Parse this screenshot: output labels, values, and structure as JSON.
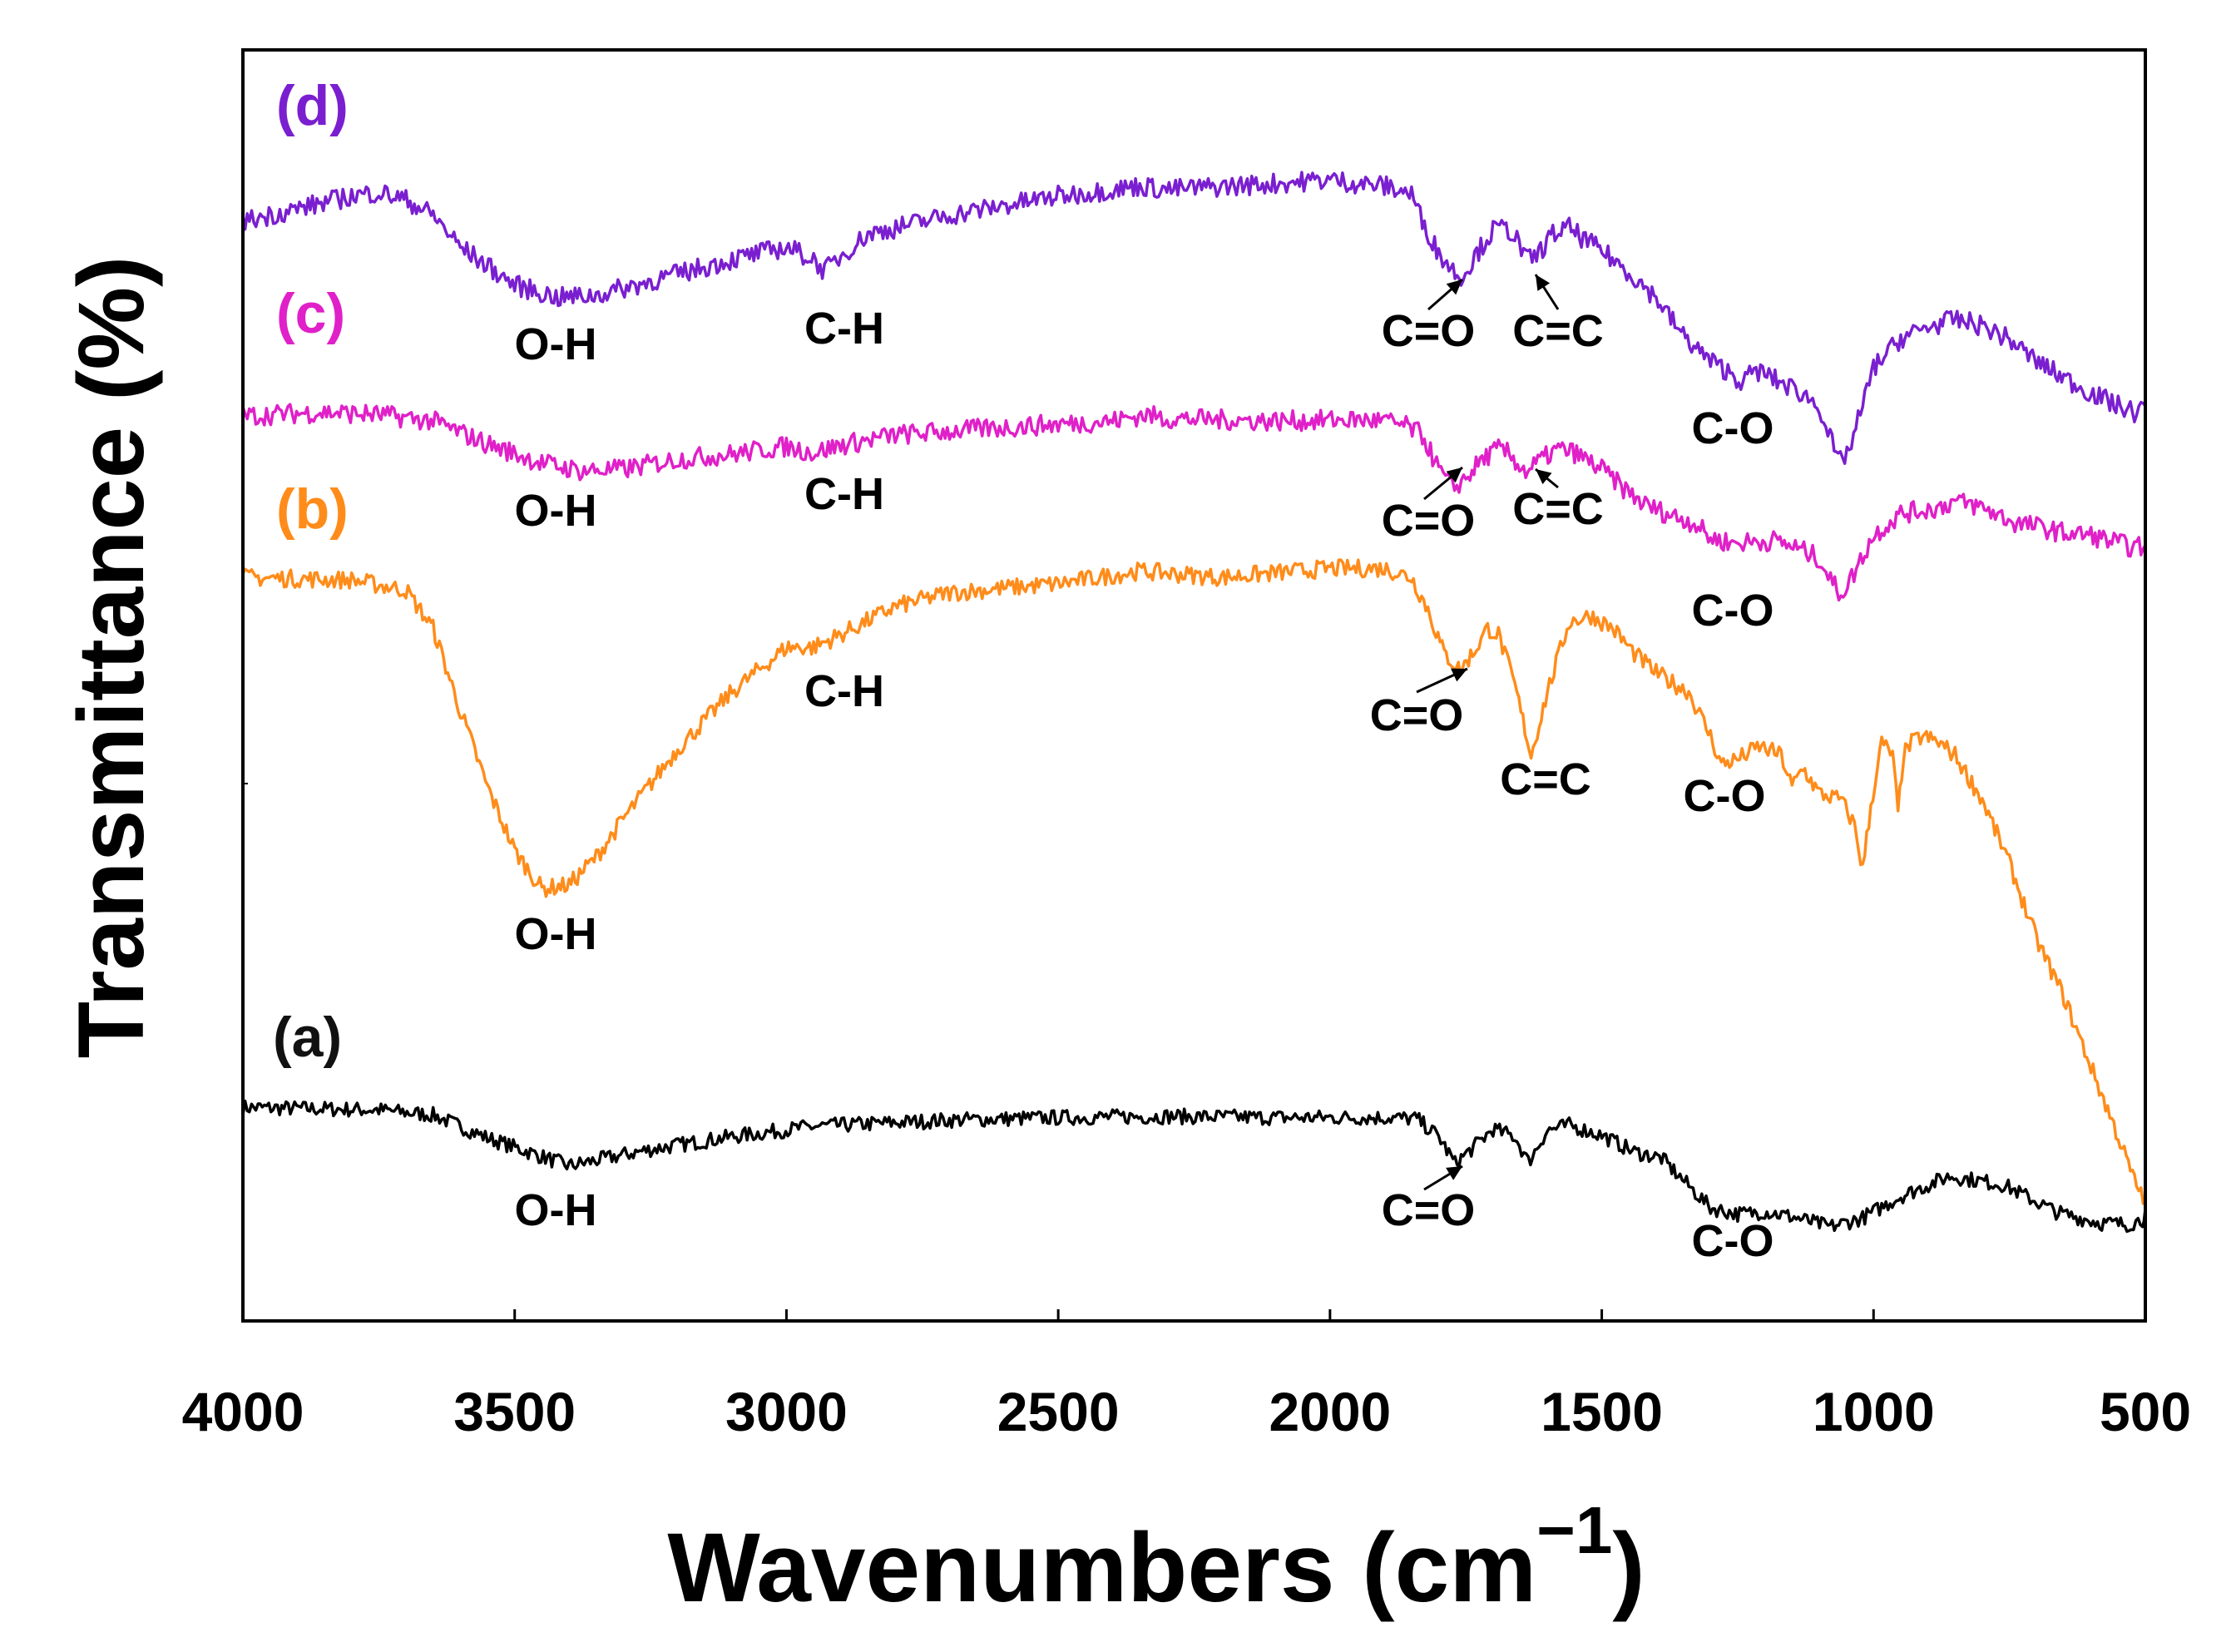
{
  "chart_data": {
    "type": "line",
    "title": "",
    "xlabel": "Wavenumbers (cm",
    "xlabel_superscript": "−1",
    "xlabel_close": ")",
    "ylabel": "Transmittance (%)",
    "xlim": [
      4000,
      500
    ],
    "x_reversed": true,
    "yticks_shown": false,
    "xticks": [
      "4000",
      "3500",
      "3000",
      "2500",
      "2000",
      "1500",
      "1000",
      "500"
    ],
    "xtick_values": [
      4000,
      3500,
      3000,
      2500,
      2000,
      1500,
      1000,
      500
    ],
    "ylim": [
      0,
      100
    ],
    "series": [
      {
        "name": "(a)",
        "color": "#000000",
        "noise": 1.2,
        "x": [
          4000,
          3750,
          3650,
          3550,
          3400,
          3250,
          3100,
          2950,
          2700,
          2500,
          2300,
          2100,
          1900,
          1840,
          1800,
          1770,
          1740,
          1700,
          1660,
          1635,
          1600,
          1560,
          1500,
          1440,
          1390,
          1360,
          1300,
          1250,
          1200,
          1150,
          1080,
          1020,
          950,
          860,
          760,
          660,
          580,
          530,
          505,
          500
        ],
        "y": [
          16.8,
          16.6,
          16.2,
          14.4,
          12.2,
          13.5,
          14.5,
          15.3,
          15.8,
          16.0,
          16.1,
          16.0,
          16.0,
          15.9,
          14.5,
          12.4,
          13.5,
          15.1,
          14.5,
          12.5,
          15.0,
          15.4,
          14.6,
          13.3,
          12.8,
          11.5,
          8.9,
          8.4,
          8.6,
          8.2,
          7.4,
          8.1,
          9.8,
          11.4,
          10.7,
          8.5,
          7.7,
          7.6,
          8.0,
          8.8
        ]
      },
      {
        "name": "(b)",
        "color": "#FF8C1A",
        "noise": 1.4,
        "x": [
          4000,
          3800,
          3700,
          3650,
          3600,
          3550,
          3500,
          3450,
          3400,
          3350,
          3300,
          3200,
          3100,
          3000,
          2950,
          2900,
          2800,
          2700,
          2500,
          2350,
          2200,
          2000,
          1900,
          1850,
          1820,
          1790,
          1760,
          1730,
          1710,
          1690,
          1660,
          1630,
          1600,
          1560,
          1520,
          1480,
          1440,
          1400,
          1370,
          1340,
          1300,
          1280,
          1250,
          1210,
          1170,
          1150,
          1130,
          1100,
          1060,
          1035,
          1020,
          1005,
          985,
          965,
          955,
          945,
          930,
          910,
          880,
          850,
          800,
          750,
          700,
          650,
          600,
          550,
          520,
          500
        ],
        "y": [
          58.5,
          58.3,
          57.5,
          54.5,
          48.0,
          42.0,
          37.0,
          34.0,
          34.3,
          36.5,
          39.5,
          45.0,
          49.5,
          53.0,
          53.0,
          54.0,
          56.2,
          57.3,
          58.0,
          59.0,
          58.5,
          59.2,
          59.2,
          58.5,
          56.0,
          52.5,
          51.2,
          53.0,
          54.5,
          54.0,
          50.0,
          44.5,
          49.5,
          55.0,
          55.5,
          54.5,
          52.5,
          51.0,
          50.2,
          49.5,
          46.0,
          43.8,
          44.2,
          45.2,
          44.5,
          42.0,
          43.5,
          41.5,
          41.0,
          39.0,
          35.5,
          40.5,
          45.5,
          44.5,
          40.0,
          44.5,
          45.5,
          46.0,
          45.5,
          44.5,
          41.0,
          36.0,
          30.0,
          25.5,
          20.0,
          14.5,
          11.0,
          9.5
        ]
      },
      {
        "name": "(c)",
        "color": "#E020C8",
        "noise": 1.6,
        "x": [
          4000,
          3850,
          3750,
          3650,
          3550,
          3450,
          3380,
          3300,
          3200,
          3100,
          3000,
          2950,
          2900,
          2800,
          2600,
          2400,
          2340,
          2300,
          2100,
          1950,
          1900,
          1860,
          1830,
          1800,
          1775,
          1750,
          1720,
          1690,
          1670,
          1640,
          1610,
          1580,
          1550,
          1500,
          1460,
          1420,
          1380,
          1330,
          1300,
          1260,
          1220,
          1180,
          1140,
          1100,
          1075,
          1060,
          1040,
          1000,
          950,
          880,
          850,
          800,
          740,
          700,
          650,
          600,
          550,
          520,
          500
        ],
        "y": [
          71.2,
          71.5,
          71.3,
          70.8,
          69.0,
          67.5,
          66.9,
          67.0,
          67.8,
          68.2,
          68.8,
          68.3,
          68.9,
          69.7,
          70.3,
          70.8,
          71.3,
          71.0,
          70.8,
          70.9,
          70.8,
          70.4,
          69.7,
          67.0,
          65.5,
          66.3,
          67.8,
          68.6,
          68.2,
          66.8,
          67.8,
          68.6,
          68.3,
          67.0,
          65.5,
          64.2,
          63.5,
          62.8,
          61.6,
          61.2,
          61.3,
          61.4,
          60.8,
          60.0,
          58.0,
          57.2,
          58.5,
          61.8,
          63.5,
          64.0,
          64.5,
          64.0,
          62.8,
          62.5,
          62.0,
          61.8,
          61.2,
          60.8,
          61.0
        ]
      },
      {
        "name": "(d)",
        "color": "#7A1FD0",
        "noise": 1.6,
        "x": [
          4000,
          3900,
          3800,
          3750,
          3700,
          3650,
          3600,
          3500,
          3420,
          3350,
          3250,
          3100,
          3000,
          2950,
          2930,
          2900,
          2850,
          2700,
          2500,
          2400,
          2350,
          2300,
          2100,
          2000,
          1950,
          1900,
          1850,
          1830,
          1800,
          1770,
          1755,
          1730,
          1700,
          1680,
          1660,
          1640,
          1620,
          1590,
          1560,
          1530,
          1500,
          1450,
          1400,
          1350,
          1300,
          1260,
          1240,
          1220,
          1200,
          1170,
          1140,
          1100,
          1080,
          1065,
          1045,
          1020,
          1000,
          950,
          900,
          850,
          800,
          750,
          700,
          650,
          600,
          550,
          520,
          500
        ],
        "y": [
          86.5,
          87.5,
          88.5,
          88.8,
          88.2,
          87.0,
          84.5,
          81.5,
          80.5,
          80.7,
          81.8,
          83.5,
          84.5,
          83.5,
          82.6,
          83.8,
          85.5,
          87.0,
          88.5,
          89.0,
          89.3,
          89.0,
          89.5,
          89.8,
          89.5,
          89.3,
          88.7,
          86.5,
          84.0,
          82.5,
          82.2,
          84.0,
          85.8,
          86.0,
          85.5,
          83.5,
          83.8,
          85.5,
          86.0,
          85.0,
          84.2,
          82.5,
          80.5,
          77.5,
          75.5,
          74.5,
          73.8,
          74.8,
          74.5,
          73.8,
          73.2,
          72.0,
          69.5,
          67.5,
          68.5,
          72.0,
          75.0,
          77.3,
          78.2,
          78.8,
          78.3,
          77.2,
          75.5,
          74.2,
          73.0,
          72.0,
          71.5,
          72.0
        ]
      }
    ],
    "series_labels": [
      {
        "text": "(d)",
        "color": "#7A1FD0"
      },
      {
        "text": "(c)",
        "color": "#E020C8"
      },
      {
        "text": "(b)",
        "color": "#FF8C1A"
      },
      {
        "text": "(a)",
        "color": "#111111"
      }
    ],
    "annotations": [
      {
        "text": "O-H",
        "wavenumber": 3400,
        "arrow": false
      },
      {
        "text": "C-H",
        "wavenumber": 2900,
        "arrow": false
      },
      {
        "text": "C=O",
        "wavenumber": 1745,
        "arrow": true
      },
      {
        "text": "C=C",
        "wavenumber": 1560,
        "arrow": true
      },
      {
        "text": "C-O",
        "wavenumber": 1190,
        "arrow": false
      },
      {
        "text": "O-H",
        "wavenumber": 3400,
        "arrow": false
      },
      {
        "text": "C-H",
        "wavenumber": 2900,
        "arrow": false
      },
      {
        "text": "C=O",
        "wavenumber": 1745,
        "arrow": true
      },
      {
        "text": "C=C",
        "wavenumber": 1560,
        "arrow": true
      },
      {
        "text": "C-O",
        "wavenumber": 1190,
        "arrow": false
      },
      {
        "text": "C-H",
        "wavenumber": 2900,
        "arrow": false
      },
      {
        "text": "C=O",
        "wavenumber": 1765,
        "arrow": true
      },
      {
        "text": "C=C",
        "wavenumber": 1555,
        "arrow": false
      },
      {
        "text": "C-O",
        "wavenumber": 1240,
        "arrow": false
      },
      {
        "text": "O-H",
        "wavenumber": 3400,
        "arrow": false
      },
      {
        "text": "O-H",
        "wavenumber": 3400,
        "arrow": false
      },
      {
        "text": "C=O",
        "wavenumber": 1745,
        "arrow": true
      },
      {
        "text": "C-O",
        "wavenumber": 1190,
        "arrow": false
      }
    ]
  }
}
